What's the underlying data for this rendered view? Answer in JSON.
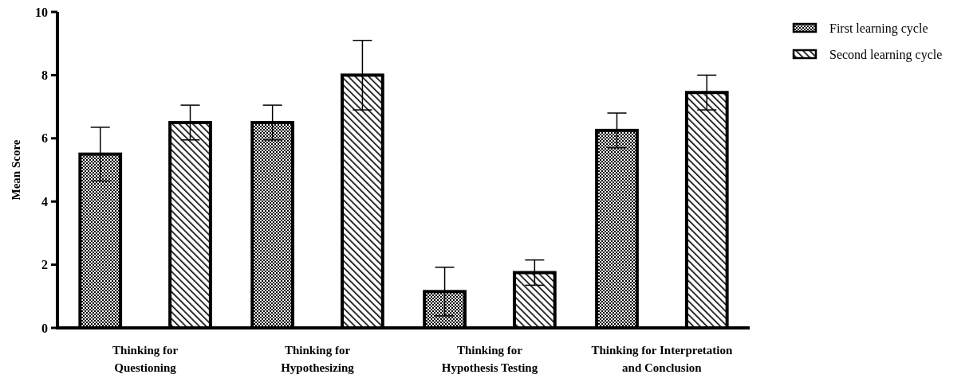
{
  "chart_data": {
    "type": "bar",
    "ylabel": "Mean Score",
    "categories": [
      "Thinking for Questioning",
      "Thinking for Hypothesizing",
      "Thinking for Hypothesis Testing",
      "Thinking for Interpretation and Conclusion"
    ],
    "series": [
      {
        "name": "First learning cycle",
        "color": "#000000",
        "values": [
          5.5,
          6.5,
          1.15,
          6.25
        ],
        "errors": [
          0.85,
          0.55,
          0.77,
          0.55
        ]
      },
      {
        "name": "Second learning cycle",
        "color": "#000000",
        "values": [
          6.5,
          8.0,
          1.75,
          7.45
        ],
        "errors": [
          0.55,
          1.1,
          0.4,
          0.55
        ]
      }
    ],
    "ylim": [
      0,
      10
    ],
    "yticks": [
      0,
      2,
      4,
      6,
      8,
      10
    ],
    "legend": "top right",
    "grid": false
  }
}
